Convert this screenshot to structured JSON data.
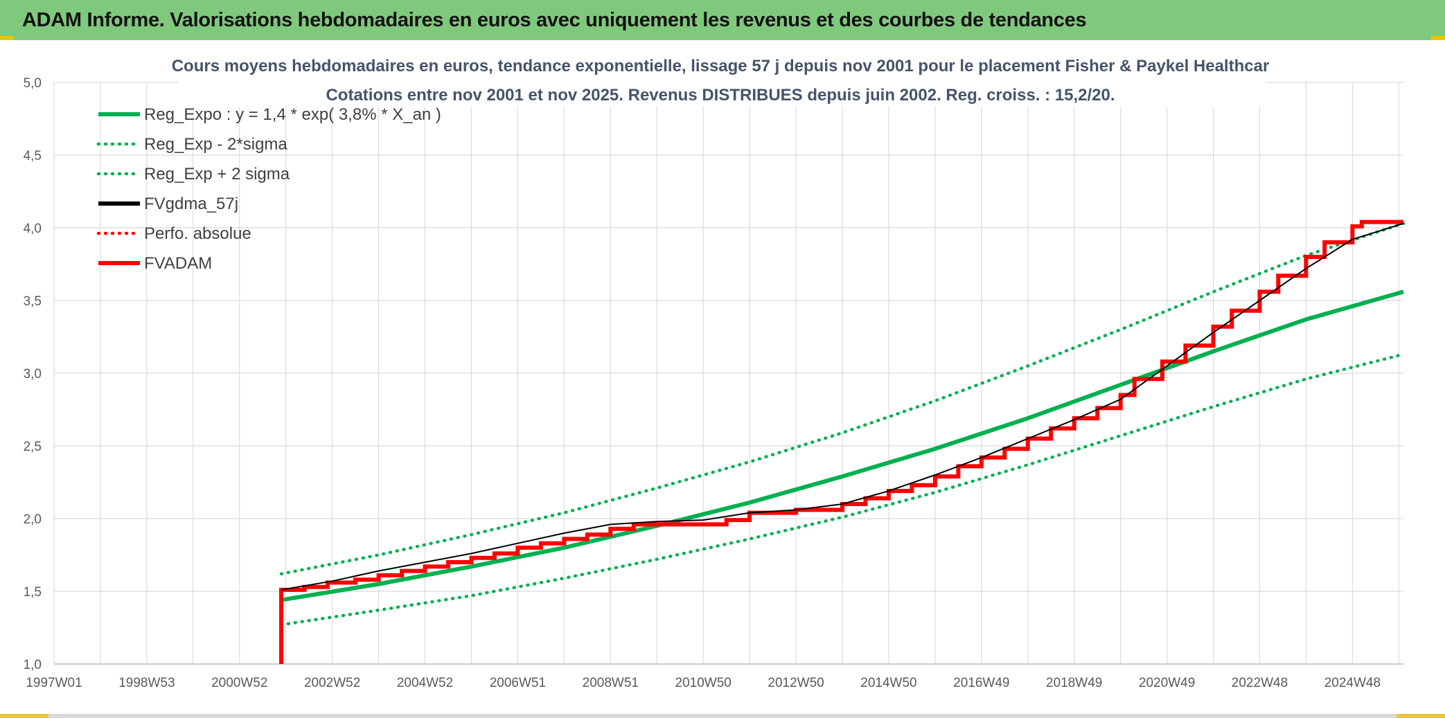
{
  "header": {
    "title": "ADAM Informe. Valorisations hebdomadaires en euros avec uniquement les revenus et des courbes de tendances"
  },
  "colors": {
    "banner": "#7fc97c",
    "reg_green": "#00b050",
    "adam_red": "#ff0000",
    "gdma_black": "#000000",
    "grid": "#d9d9d9",
    "title_text": "#44546a"
  },
  "chart_data": {
    "type": "line",
    "title": "Cours moyens hebdomadaires en euros, tendance exponentielle, lissage 57 j depuis nov 2001 pour le placement Fisher & Paykel Healthcar",
    "subtitle": "Cotations entre nov 2001 et nov 2025. Revenus DISTRIBUES depuis juin 2002. Reg. croiss. : 15,2/20.",
    "xlabel": "",
    "ylabel": "",
    "x_ticks": [
      "1997W01",
      "1998W53",
      "2000W52",
      "2002W52",
      "2004W52",
      "2006W51",
      "2008W51",
      "2010W50",
      "2012W50",
      "2014W50",
      "2016W49",
      "2018W49",
      "2020W49",
      "2022W48",
      "2024W48"
    ],
    "x_range": [
      1997.0,
      2026.1
    ],
    "ylim": [
      1.0,
      5.0
    ],
    "y_ticks": [
      "1,0",
      "1,5",
      "2,0",
      "2,5",
      "3,0",
      "3,5",
      "4,0",
      "4,5",
      "5,0"
    ],
    "grid": true,
    "legend_position": "top-left",
    "legend": [
      {
        "name": "Reg_Expo : y = 1,4 * exp( 3,8% *  X_an )",
        "style": "solid",
        "color": "#00b050"
      },
      {
        "name": "Reg_Exp - 2*sigma",
        "style": "dotted",
        "color": "#00b050"
      },
      {
        "name": "Reg_Exp + 2 sigma",
        "style": "dotted",
        "color": "#00b050"
      },
      {
        "name": "FVgdma_57j",
        "style": "solid",
        "color": "#000000"
      },
      {
        "name": "Perfo. absolue",
        "style": "dotted",
        "color": "#ff0000"
      },
      {
        "name": "FVADAM",
        "style": "solid",
        "color": "#ff0000"
      }
    ],
    "series": [
      {
        "name": "Reg_Expo : y = 1,4 * exp( 3,8% *  X_an )",
        "x": [
          2001.9,
          2004.0,
          2006.0,
          2008.0,
          2010.0,
          2012.0,
          2014.0,
          2016.0,
          2018.0,
          2020.0,
          2022.0,
          2024.0,
          2026.1
        ],
        "values": [
          1.44,
          1.55,
          1.67,
          1.8,
          1.95,
          2.11,
          2.29,
          2.48,
          2.69,
          2.92,
          3.15,
          3.37,
          3.56
        ]
      },
      {
        "name": "Reg_Exp - 2*sigma",
        "x": [
          2001.9,
          2004.0,
          2006.0,
          2008.0,
          2010.0,
          2012.0,
          2014.0,
          2016.0,
          2018.0,
          2020.0,
          2022.0,
          2024.0,
          2026.1
        ],
        "values": [
          1.27,
          1.37,
          1.47,
          1.59,
          1.72,
          1.86,
          2.01,
          2.18,
          2.37,
          2.57,
          2.77,
          2.96,
          3.13
        ]
      },
      {
        "name": "Reg_Exp + 2 sigma",
        "x": [
          2001.9,
          2004.0,
          2006.0,
          2008.0,
          2010.0,
          2012.0,
          2014.0,
          2016.0,
          2018.0,
          2020.0,
          2022.0,
          2024.0,
          2026.1
        ],
        "values": [
          1.62,
          1.75,
          1.89,
          2.04,
          2.21,
          2.39,
          2.59,
          2.81,
          3.05,
          3.3,
          3.56,
          3.81,
          4.03
        ]
      },
      {
        "name": "FVgdma_57j",
        "x": [
          2001.9,
          2003.0,
          2004.0,
          2005.0,
          2006.0,
          2007.0,
          2008.0,
          2009.0,
          2010.0,
          2011.0,
          2012.0,
          2013.0,
          2014.0,
          2015.0,
          2016.0,
          2017.0,
          2018.0,
          2019.0,
          2020.0,
          2021.0,
          2022.0,
          2023.0,
          2024.0,
          2025.0,
          2026.1
        ],
        "values": [
          1.51,
          1.57,
          1.64,
          1.7,
          1.76,
          1.83,
          1.9,
          1.96,
          1.98,
          1.99,
          2.04,
          2.06,
          2.1,
          2.19,
          2.3,
          2.42,
          2.55,
          2.68,
          2.82,
          3.05,
          3.28,
          3.5,
          3.72,
          3.92,
          4.03
        ]
      },
      {
        "name": "FVADAM",
        "steps": [
          {
            "x": 2001.9,
            "y": 1.0
          },
          {
            "x": 2001.9,
            "y": 1.51
          },
          {
            "x": 2002.4,
            "y": 1.53
          },
          {
            "x": 2002.9,
            "y": 1.56
          },
          {
            "x": 2003.5,
            "y": 1.58
          },
          {
            "x": 2004.0,
            "y": 1.61
          },
          {
            "x": 2004.5,
            "y": 1.64
          },
          {
            "x": 2005.0,
            "y": 1.67
          },
          {
            "x": 2005.5,
            "y": 1.7
          },
          {
            "x": 2006.0,
            "y": 1.73
          },
          {
            "x": 2006.5,
            "y": 1.76
          },
          {
            "x": 2007.0,
            "y": 1.8
          },
          {
            "x": 2007.5,
            "y": 1.83
          },
          {
            "x": 2008.0,
            "y": 1.86
          },
          {
            "x": 2008.5,
            "y": 1.89
          },
          {
            "x": 2009.0,
            "y": 1.93
          },
          {
            "x": 2009.5,
            "y": 1.96
          },
          {
            "x": 2011.5,
            "y": 1.99
          },
          {
            "x": 2012.0,
            "y": 2.04
          },
          {
            "x": 2013.0,
            "y": 2.06
          },
          {
            "x": 2014.0,
            "y": 2.1
          },
          {
            "x": 2014.5,
            "y": 2.14
          },
          {
            "x": 2015.0,
            "y": 2.19
          },
          {
            "x": 2015.5,
            "y": 2.23
          },
          {
            "x": 2016.0,
            "y": 2.29
          },
          {
            "x": 2016.5,
            "y": 2.36
          },
          {
            "x": 2017.0,
            "y": 2.42
          },
          {
            "x": 2017.5,
            "y": 2.48
          },
          {
            "x": 2018.0,
            "y": 2.55
          },
          {
            "x": 2018.5,
            "y": 2.62
          },
          {
            "x": 2019.0,
            "y": 2.69
          },
          {
            "x": 2019.5,
            "y": 2.76
          },
          {
            "x": 2020.0,
            "y": 2.85
          },
          {
            "x": 2020.3,
            "y": 2.96
          },
          {
            "x": 2020.9,
            "y": 3.08
          },
          {
            "x": 2021.4,
            "y": 3.19
          },
          {
            "x": 2022.0,
            "y": 3.32
          },
          {
            "x": 2022.4,
            "y": 3.43
          },
          {
            "x": 2023.0,
            "y": 3.56
          },
          {
            "x": 2023.4,
            "y": 3.67
          },
          {
            "x": 2024.0,
            "y": 3.8
          },
          {
            "x": 2024.4,
            "y": 3.9
          },
          {
            "x": 2025.0,
            "y": 4.01
          },
          {
            "x": 2025.2,
            "y": 4.04
          },
          {
            "x": 2026.1,
            "y": 4.04
          }
        ]
      }
    ]
  }
}
